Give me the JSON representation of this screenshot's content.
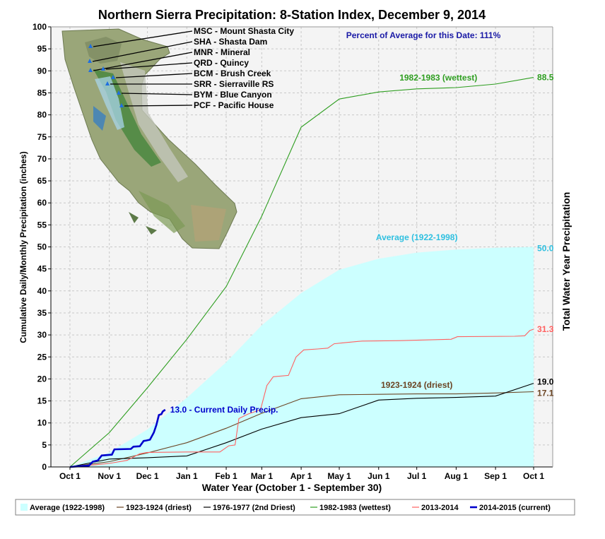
{
  "chart_data": {
    "type": "line",
    "title": "Northern Sierra Precipitation: 8-Station Index, December 9, 2014",
    "xlabel": "Water Year (October 1 - September 30)",
    "ylabel": "Cumulative Daily/Monthly Precipitation (inches)",
    "ylabel_right": "Total Water Year Precipitation",
    "annotation": "Percent of Average for this Date: 111%",
    "current_label": "13.0 -  Current Daily Precip.",
    "x_ticks": [
      "Oct 1",
      "Nov 1",
      "Dec 1",
      "Jan 1",
      "Feb 1",
      "Mar 1",
      "Apr 1",
      "May 1",
      "Jun 1",
      "Jul 1",
      "Aug 1",
      "Sep 1",
      "Oct 1"
    ],
    "x_tick_days": [
      0,
      31,
      61,
      92,
      123,
      151,
      182,
      212,
      243,
      273,
      304,
      335,
      365
    ],
    "xlim": [
      -15,
      380
    ],
    "ylim": [
      0,
      100
    ],
    "y_ticks": [
      0,
      5,
      10,
      15,
      20,
      25,
      30,
      35,
      40,
      45,
      50,
      55,
      60,
      65,
      70,
      75,
      80,
      85,
      90,
      95,
      100
    ],
    "grid": true,
    "legend_position": "bottom",
    "colors": {
      "average": "#ccffff",
      "driest": "#6b4423",
      "second_driest": "#000000",
      "wettest": "#2e9e20",
      "y2013": "#ff6060",
      "current": "#0000cc",
      "plot_bg": "#f4f4f4",
      "grid": "#c8c8c8",
      "annotation": "#1a1aa6",
      "avg_label": "#30c0e0"
    },
    "series": [
      {
        "name": "Average (1922-1998)",
        "style": "area",
        "end_label": "50.0",
        "inline_label": "Average (1922-1998)",
        "points": [
          [
            0,
            0
          ],
          [
            31,
            3.3
          ],
          [
            61,
            8.5
          ],
          [
            92,
            15.7
          ],
          [
            123,
            23.8
          ],
          [
            151,
            32.2
          ],
          [
            182,
            39.5
          ],
          [
            212,
            44.8
          ],
          [
            243,
            47.3
          ],
          [
            273,
            48.7
          ],
          [
            304,
            49.4
          ],
          [
            335,
            49.8
          ],
          [
            365,
            50.0
          ]
        ]
      },
      {
        "name": "1923-1924 (driest)",
        "style": "line",
        "end_label": "17.1",
        "inline_label": "1923-1924 (driest)",
        "points": [
          [
            0,
            0
          ],
          [
            31,
            1.2
          ],
          [
            61,
            3.2
          ],
          [
            92,
            5.5
          ],
          [
            123,
            8.8
          ],
          [
            151,
            12.2
          ],
          [
            182,
            15.5
          ],
          [
            212,
            16.4
          ],
          [
            243,
            16.5
          ],
          [
            273,
            16.6
          ],
          [
            304,
            16.6
          ],
          [
            335,
            16.8
          ],
          [
            365,
            17.1
          ]
        ]
      },
      {
        "name": "1976-1977 (2nd Driest)",
        "style": "line",
        "end_label": "19.0",
        "points": [
          [
            0,
            0
          ],
          [
            31,
            1.8
          ],
          [
            61,
            2.1
          ],
          [
            92,
            2.5
          ],
          [
            123,
            5.5
          ],
          [
            151,
            8.6
          ],
          [
            182,
            11.2
          ],
          [
            212,
            12.1
          ],
          [
            243,
            15.2
          ],
          [
            273,
            15.6
          ],
          [
            304,
            15.8
          ],
          [
            335,
            16.1
          ],
          [
            365,
            19.0
          ]
        ]
      },
      {
        "name": "1982-1983 (wettest)",
        "style": "line",
        "end_label": "88.5",
        "inline_label": "1982-1983 (wettest)",
        "points": [
          [
            0,
            0
          ],
          [
            31,
            7.8
          ],
          [
            61,
            18.0
          ],
          [
            92,
            29.0
          ],
          [
            123,
            41.0
          ],
          [
            151,
            57.0
          ],
          [
            182,
            77.2
          ],
          [
            212,
            83.6
          ],
          [
            243,
            85.2
          ],
          [
            273,
            85.9
          ],
          [
            304,
            86.2
          ],
          [
            335,
            87.0
          ],
          [
            365,
            88.5
          ]
        ]
      },
      {
        "name": "2013-2014",
        "style": "line",
        "end_label": "31.3",
        "points": [
          [
            0,
            0
          ],
          [
            20,
            0.5
          ],
          [
            31,
            0.8
          ],
          [
            45,
            1.5
          ],
          [
            55,
            3.0
          ],
          [
            61,
            3.3
          ],
          [
            92,
            3.4
          ],
          [
            118,
            3.4
          ],
          [
            125,
            4.8
          ],
          [
            130,
            5.0
          ],
          [
            133,
            11.0
          ],
          [
            140,
            12.0
          ],
          [
            150,
            13.0
          ],
          [
            155,
            18.5
          ],
          [
            160,
            20.5
          ],
          [
            172,
            20.8
          ],
          [
            178,
            25.0
          ],
          [
            184,
            26.6
          ],
          [
            195,
            26.8
          ],
          [
            203,
            27.0
          ],
          [
            208,
            28.0
          ],
          [
            215,
            28.2
          ],
          [
            230,
            28.6
          ],
          [
            260,
            28.7
          ],
          [
            300,
            29.0
          ],
          [
            305,
            29.6
          ],
          [
            350,
            29.7
          ],
          [
            358,
            29.8
          ],
          [
            362,
            31.0
          ],
          [
            365,
            31.3
          ]
        ]
      },
      {
        "name": "2014-2015 (current)",
        "style": "line",
        "end_label": "13.0",
        "points": [
          [
            0,
            0
          ],
          [
            15,
            0.3
          ],
          [
            18,
            1.2
          ],
          [
            22,
            1.5
          ],
          [
            25,
            2.6
          ],
          [
            33,
            2.8
          ],
          [
            35,
            4.0
          ],
          [
            48,
            4.1
          ],
          [
            50,
            4.6
          ],
          [
            55,
            4.7
          ],
          [
            58,
            5.9
          ],
          [
            60,
            6.0
          ],
          [
            63,
            6.2
          ],
          [
            66,
            7.8
          ],
          [
            68,
            9.5
          ],
          [
            70,
            11.8
          ],
          [
            72,
            12.0
          ],
          [
            73,
            12.6
          ],
          [
            75,
            13.0
          ]
        ]
      }
    ],
    "stations": [
      {
        "code_label": "MSC - Mount Shasta City"
      },
      {
        "code_label": "SHA - Shasta Dam"
      },
      {
        "code_label": "MNR - Mineral"
      },
      {
        "code_label": "QRD - Quincy"
      },
      {
        "code_label": "BCM - Brush Creek"
      },
      {
        "code_label": "SRR - Sierraville RS"
      },
      {
        "code_label": "BYM - Blue Canyon"
      },
      {
        "code_label": "PCF - Pacific House"
      }
    ]
  }
}
